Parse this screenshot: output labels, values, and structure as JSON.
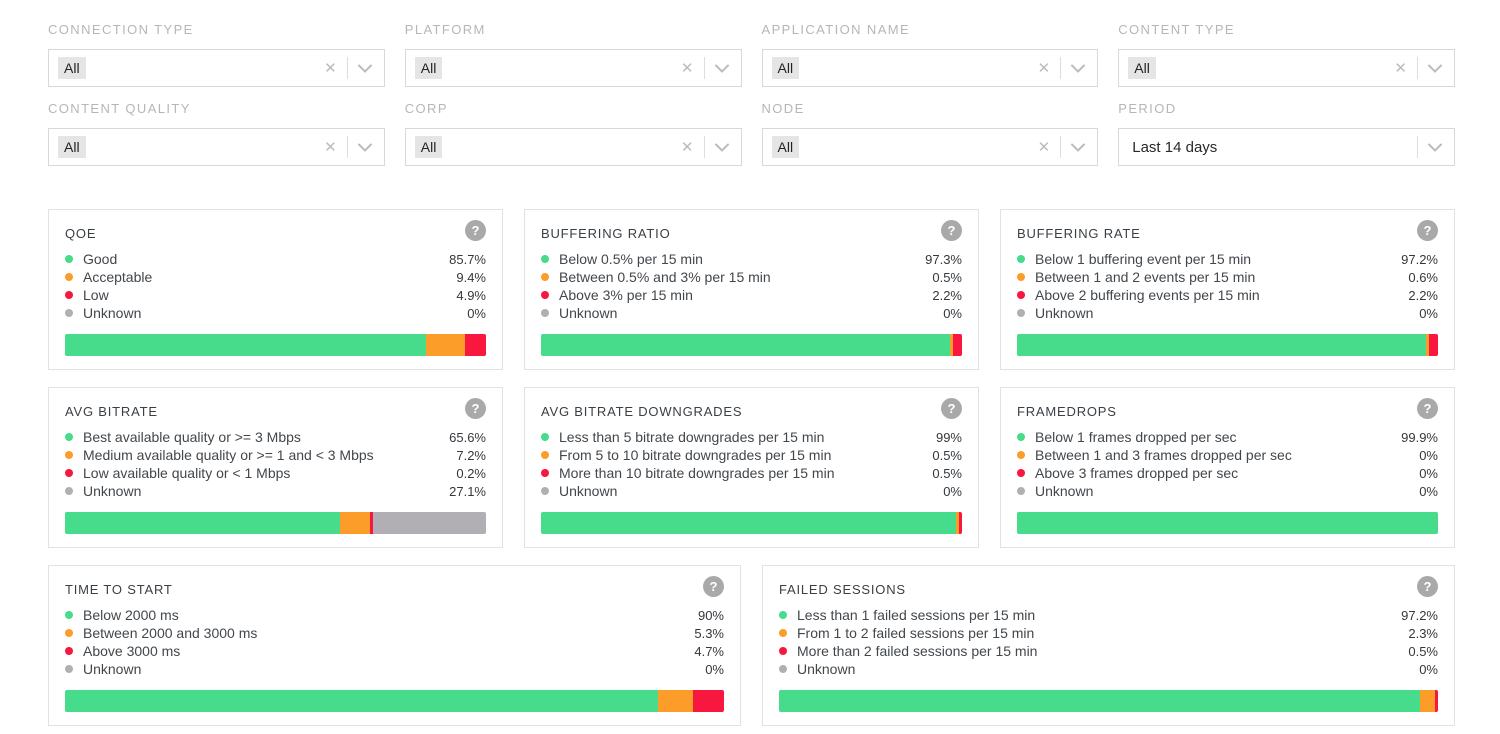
{
  "colors": {
    "green": "#46dc8c",
    "orange": "#fb9d28",
    "red": "#f8173f",
    "gray": "#b2afb4"
  },
  "icons": {
    "help_glyph": "?",
    "clear_glyph": "✕"
  },
  "filters": [
    {
      "label": "CONNECTION TYPE",
      "value": "All",
      "clearable": true
    },
    {
      "label": "PLATFORM",
      "value": "All",
      "clearable": true
    },
    {
      "label": "APPLICATION NAME",
      "value": "All",
      "clearable": true
    },
    {
      "label": "CONTENT TYPE",
      "value": "All",
      "clearable": true
    },
    {
      "label": "CONTENT QUALITY",
      "value": "All",
      "clearable": true
    },
    {
      "label": "CORP",
      "value": "All",
      "clearable": true
    },
    {
      "label": "NODE",
      "value": "All",
      "clearable": true
    },
    {
      "label": "PERIOD",
      "value": "Last 14 days",
      "clearable": false
    }
  ],
  "cards": [
    {
      "title": "QOE",
      "rows": [
        {
          "color": "green",
          "label": "Good",
          "value": "85.7%"
        },
        {
          "color": "orange",
          "label": "Acceptable",
          "value": "9.4%"
        },
        {
          "color": "red",
          "label": "Low",
          "value": "4.9%"
        },
        {
          "color": "gray",
          "label": "Unknown",
          "value": "0%"
        }
      ]
    },
    {
      "title": "BUFFERING RATIO",
      "rows": [
        {
          "color": "green",
          "label": "Below 0.5% per 15 min",
          "value": "97.3%"
        },
        {
          "color": "orange",
          "label": "Between 0.5% and 3% per 15 min",
          "value": "0.5%"
        },
        {
          "color": "red",
          "label": "Above 3% per 15 min",
          "value": "2.2%"
        },
        {
          "color": "gray",
          "label": "Unknown",
          "value": "0%"
        }
      ]
    },
    {
      "title": "BUFFERING RATE",
      "rows": [
        {
          "color": "green",
          "label": "Below 1 buffering event per 15 min",
          "value": "97.2%"
        },
        {
          "color": "orange",
          "label": "Between 1 and 2 events per 15 min",
          "value": "0.6%"
        },
        {
          "color": "red",
          "label": "Above 2 buffering events per 15 min",
          "value": "2.2%"
        },
        {
          "color": "gray",
          "label": "Unknown",
          "value": "0%"
        }
      ]
    },
    {
      "title": "AVG BITRATE",
      "rows": [
        {
          "color": "green",
          "label": "Best available quality or >= 3 Mbps",
          "value": "65.6%"
        },
        {
          "color": "orange",
          "label": "Medium available quality or >= 1 and < 3 Mbps",
          "value": "7.2%"
        },
        {
          "color": "red",
          "label": "Low available quality or < 1 Mbps",
          "value": "0.2%"
        },
        {
          "color": "gray",
          "label": "Unknown",
          "value": "27.1%"
        }
      ]
    },
    {
      "title": "AVG BITRATE DOWNGRADES",
      "rows": [
        {
          "color": "green",
          "label": "Less than 5 bitrate downgrades per 15 min",
          "value": "99%"
        },
        {
          "color": "orange",
          "label": "From 5 to 10 bitrate downgrades per 15 min",
          "value": "0.5%"
        },
        {
          "color": "red",
          "label": "More than 10 bitrate downgrades per 15 min",
          "value": "0.5%"
        },
        {
          "color": "gray",
          "label": "Unknown",
          "value": "0%"
        }
      ]
    },
    {
      "title": "FRAMEDROPS",
      "rows": [
        {
          "color": "green",
          "label": "Below 1 frames dropped per sec",
          "value": "99.9%"
        },
        {
          "color": "orange",
          "label": "Between 1 and 3 frames dropped per sec",
          "value": "0%"
        },
        {
          "color": "red",
          "label": "Above 3 frames dropped per sec",
          "value": "0%"
        },
        {
          "color": "gray",
          "label": "Unknown",
          "value": "0%"
        }
      ]
    },
    {
      "title": "TIME TO START",
      "rows": [
        {
          "color": "green",
          "label": "Below 2000 ms",
          "value": "90%"
        },
        {
          "color": "orange",
          "label": "Between 2000 and 3000 ms",
          "value": "5.3%"
        },
        {
          "color": "red",
          "label": "Above 3000 ms",
          "value": "4.7%"
        },
        {
          "color": "gray",
          "label": "Unknown",
          "value": "0%"
        }
      ]
    },
    {
      "title": "FAILED SESSIONS",
      "rows": [
        {
          "color": "green",
          "label": "Less than 1 failed sessions per 15 min",
          "value": "97.2%"
        },
        {
          "color": "orange",
          "label": "From 1 to 2 failed sessions per 15 min",
          "value": "2.3%"
        },
        {
          "color": "red",
          "label": "More than 2 failed sessions per 15 min",
          "value": "0.5%"
        },
        {
          "color": "gray",
          "label": "Unknown",
          "value": "0%"
        }
      ]
    }
  ]
}
